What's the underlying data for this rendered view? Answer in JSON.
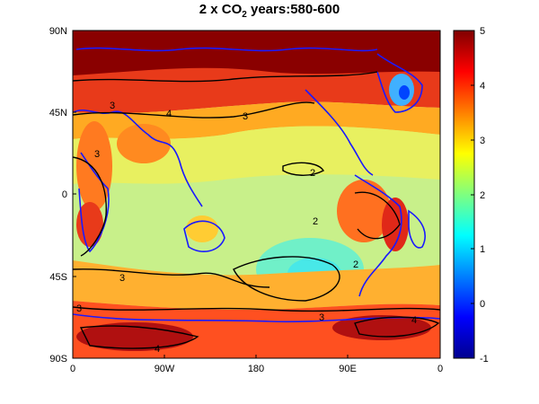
{
  "title": {
    "prefix": "2 x CO",
    "subscript": "2",
    "suffix": " years:580-600"
  },
  "map": {
    "y_ticks": [
      "90N",
      "45N",
      "0",
      "45S",
      "90S"
    ],
    "x_ticks": [
      "0",
      "90W",
      "180",
      "90E",
      "0"
    ],
    "coastline_color": "#1a1aff",
    "contour_color": "#000000",
    "contour_labels": [
      "3",
      "4",
      "3",
      "3",
      "2",
      "2",
      "2",
      "3",
      "3",
      "4",
      "4",
      "3"
    ]
  },
  "colorbar": {
    "ticks": [
      "5",
      "4",
      "3",
      "2",
      "1",
      "0",
      "-1"
    ],
    "colormap": "jet",
    "min": -1,
    "max": 5
  }
}
